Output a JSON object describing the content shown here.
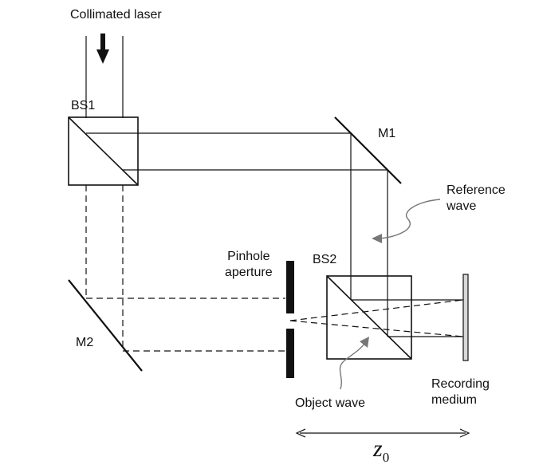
{
  "labels": {
    "collimated_laser": "Collimated laser",
    "bs1": "BS1",
    "m1": "M1",
    "m2": "M2",
    "bs2": "BS2",
    "pinhole_line1": "Pinhole",
    "pinhole_line2": "aperture",
    "reference_line1": "Reference",
    "reference_line2": "wave",
    "object_wave": "Object wave",
    "recording_line1": "Recording",
    "recording_line2": "medium",
    "distance_symbol": "z",
    "distance_subscript": "0"
  },
  "colors": {
    "line": "#111111",
    "annotation_arrow": "#777777",
    "recording_medium_fill": "#d8d8d8"
  }
}
